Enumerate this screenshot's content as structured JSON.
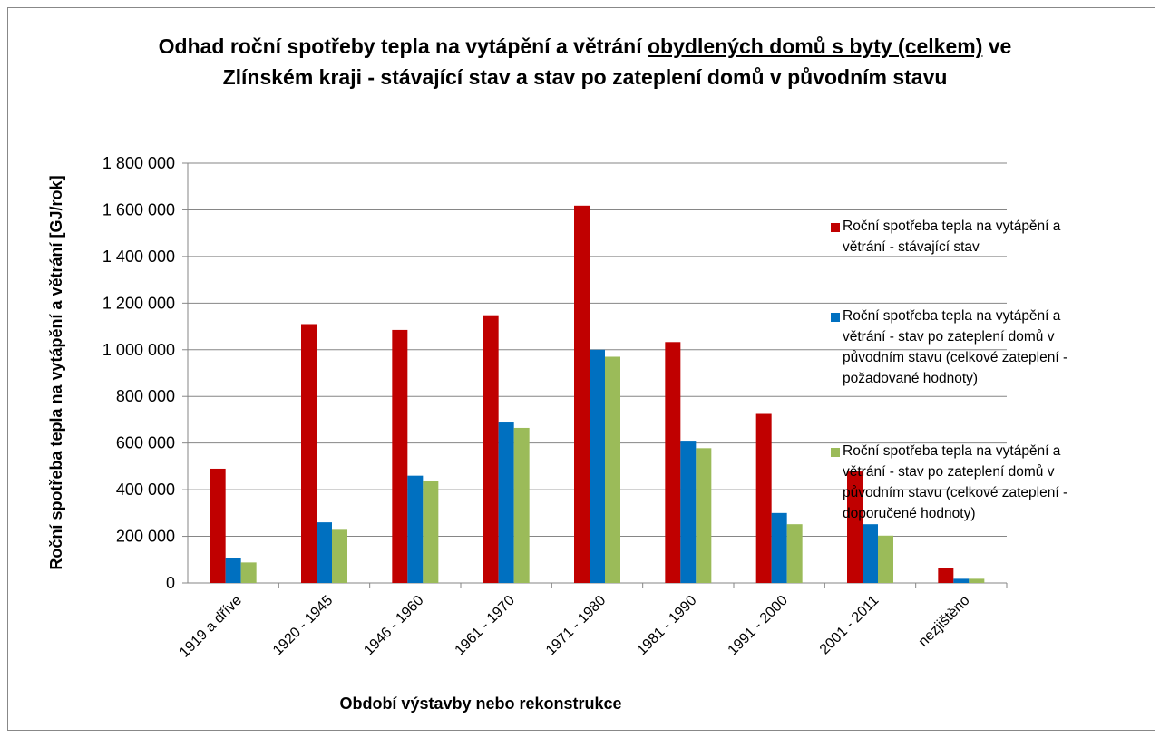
{
  "chart_data": {
    "type": "bar",
    "title": [
      {
        "text": "Odhad roční spotřeby tepla na vytápění a větrání ",
        "underline": false
      },
      {
        "text": "obydlených domů s byty (celkem)",
        "underline": true
      },
      {
        "text": " ve Zlínském kraji - stávající stav  a stav  po zateplení domů v původním stavu",
        "underline": false
      }
    ],
    "x_label": "Období výstavby  nebo rekonstrukce",
    "y_label": "Roční spotřeba tepla na vytápění a větrání  [GJ/rok]",
    "categories": [
      "1919 a dříve",
      "1920 - 1945",
      "1946 - 1960",
      "1961 - 1970",
      "1971 - 1980",
      "1981 - 1990",
      "1991 - 2000",
      "2001 - 2011",
      "nezjištěno"
    ],
    "series": [
      {
        "name": "Roční spotřeba tepla na vytápění a větrání - stávající stav",
        "color": "#c00000",
        "values": [
          490000,
          1110000,
          1085000,
          1148000,
          1618000,
          1033000,
          725000,
          478000,
          65000
        ]
      },
      {
        "name": "Roční spotřeba tepla na vytápění a větrání - stav po zateplení domů v původním stavu (celkové zateplení - požadované hodnoty)",
        "color": "#0070c0",
        "values": [
          105000,
          260000,
          460000,
          688000,
          1000000,
          610000,
          300000,
          252000,
          18000
        ]
      },
      {
        "name": "Roční spotřeba tepla na vytápění a větrání - stav po zateplení domů v původním stavu (celkové zateplení - doporučené hodnoty)",
        "color": "#9bbb59",
        "values": [
          88000,
          228000,
          438000,
          665000,
          970000,
          578000,
          252000,
          203000,
          18000
        ]
      }
    ],
    "ylim": [
      0,
      1800000
    ],
    "yticks": [
      0,
      {
        "value": 200000,
        "label": "200 000"
      },
      {
        "value": 400000,
        "label": "400 000"
      },
      {
        "value": 600000,
        "label": "600 000"
      },
      {
        "value": 800000,
        "label": "800 000"
      },
      {
        "value": 1000000,
        "label": "1 000 000"
      },
      {
        "value": 1200000,
        "label": "1 200 000"
      },
      {
        "value": 1400000,
        "label": "1 400 000"
      },
      {
        "value": 1600000,
        "label": "1 600 000"
      },
      {
        "value": 1800000,
        "label": "1 800 000"
      }
    ],
    "grid": true,
    "legend": "right"
  }
}
